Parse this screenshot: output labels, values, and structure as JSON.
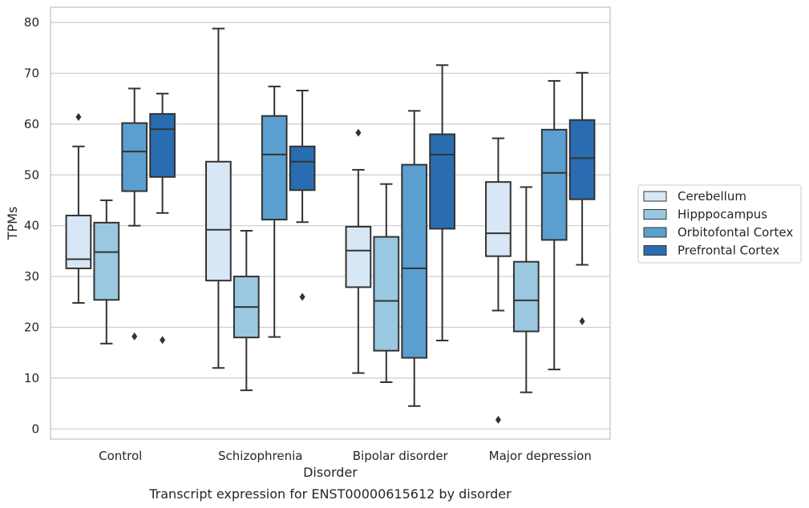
{
  "chart_data": {
    "type": "box",
    "caption": "Transcript expression for ENST00000615612 by disorder",
    "xlabel": "Disorder",
    "ylabel": "TPMs",
    "ylim": [
      -2,
      83
    ],
    "yticks": [
      0,
      10,
      20,
      30,
      40,
      50,
      60,
      70,
      80
    ],
    "grid": true,
    "legend_position": "right",
    "categories": [
      "Control",
      "Schizophrenia",
      "Bipolar disorder",
      "Major depression"
    ],
    "series": [
      {
        "name": "Cerebellum",
        "color": "#d8e7f5",
        "boxes": [
          {
            "whislo": 24.8,
            "q1": 31.6,
            "med": 33.4,
            "q3": 42.0,
            "whishi": 55.6,
            "fliers": [
              61.4
            ]
          },
          {
            "whislo": 12.0,
            "q1": 29.2,
            "med": 39.2,
            "q3": 52.6,
            "whishi": 78.8,
            "fliers": []
          },
          {
            "whislo": 11.0,
            "q1": 27.9,
            "med": 35.1,
            "q3": 39.8,
            "whishi": 51.0,
            "fliers": [
              58.3
            ]
          },
          {
            "whislo": 23.3,
            "q1": 34.0,
            "med": 38.5,
            "q3": 48.6,
            "whishi": 57.2,
            "fliers": [
              1.8
            ]
          }
        ]
      },
      {
        "name": "Hipppocampus",
        "color": "#9ac8e0",
        "boxes": [
          {
            "whislo": 16.8,
            "q1": 25.4,
            "med": 34.8,
            "q3": 40.6,
            "whishi": 45.0,
            "fliers": []
          },
          {
            "whislo": 7.6,
            "q1": 18.0,
            "med": 24.0,
            "q3": 30.0,
            "whishi": 39.0,
            "fliers": []
          },
          {
            "whislo": 9.2,
            "q1": 15.4,
            "med": 25.2,
            "q3": 37.8,
            "whishi": 48.2,
            "fliers": []
          },
          {
            "whislo": 7.2,
            "q1": 19.2,
            "med": 25.3,
            "q3": 32.9,
            "whishi": 47.6,
            "fliers": []
          }
        ]
      },
      {
        "name": "Orbitofontal Cortex",
        "color": "#5a9fcf",
        "boxes": [
          {
            "whislo": 40.0,
            "q1": 46.8,
            "med": 54.6,
            "q3": 60.2,
            "whishi": 67.0,
            "fliers": [
              18.2
            ]
          },
          {
            "whislo": 18.1,
            "q1": 41.2,
            "med": 54.0,
            "q3": 61.6,
            "whishi": 67.4,
            "fliers": []
          },
          {
            "whislo": 4.5,
            "q1": 14.0,
            "med": 31.6,
            "q3": 52.0,
            "whishi": 62.6,
            "fliers": []
          },
          {
            "whislo": 11.7,
            "q1": 37.2,
            "med": 50.4,
            "q3": 58.9,
            "whishi": 68.5,
            "fliers": []
          }
        ]
      },
      {
        "name": "Prefrontal Cortex",
        "color": "#2a6cb1",
        "boxes": [
          {
            "whislo": 42.5,
            "q1": 49.6,
            "med": 59.0,
            "q3": 62.0,
            "whishi": 66.0,
            "fliers": [
              17.5
            ]
          },
          {
            "whislo": 40.7,
            "q1": 47.0,
            "med": 52.6,
            "q3": 55.6,
            "whishi": 66.6,
            "fliers": [
              26.0
            ]
          },
          {
            "whislo": 17.4,
            "q1": 39.4,
            "med": 54.0,
            "q3": 58.0,
            "whishi": 71.6,
            "fliers": []
          },
          {
            "whislo": 32.3,
            "q1": 45.2,
            "med": 53.3,
            "q3": 60.8,
            "whishi": 70.1,
            "fliers": [
              21.2
            ]
          }
        ]
      }
    ]
  }
}
